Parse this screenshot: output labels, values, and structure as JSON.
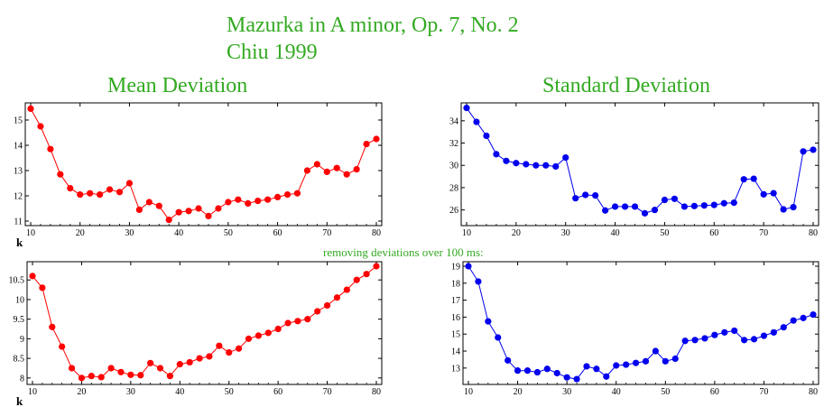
{
  "title_line1": "Mazurka in A minor, Op. 7, No. 2",
  "title_line2": "Chiu 1999",
  "heading_mean": "Mean Deviation",
  "heading_std": "Standard Deviation",
  "note": "removing deviations over 100 ms:",
  "colors": {
    "mean": "#ff0000",
    "std": "#0000ee",
    "accent": "#33aa22"
  },
  "chart_data": [
    {
      "type": "line",
      "title": "",
      "xlabel": "k",
      "ylabel": "",
      "xlim": [
        10,
        80
      ],
      "ylim": [
        11,
        15.5
      ],
      "xticks": [
        10,
        20,
        30,
        40,
        50,
        60,
        70,
        80
      ],
      "yticks": [
        11,
        12,
        13,
        14,
        15
      ],
      "ytick_labels": [
        "11",
        "12",
        "13",
        "14",
        "15"
      ],
      "series": [
        {
          "x": [
            10,
            12,
            14,
            16,
            18,
            20,
            22,
            24,
            26,
            28,
            30,
            32,
            34,
            36,
            38,
            40,
            42,
            44,
            46,
            48,
            50,
            52,
            54,
            56,
            58,
            60,
            62,
            64,
            66,
            68,
            70,
            72,
            74,
            76,
            78,
            80
          ],
          "y": [
            15.45,
            14.75,
            13.85,
            12.85,
            12.3,
            12.05,
            12.1,
            12.05,
            12.25,
            12.15,
            12.5,
            11.45,
            11.75,
            11.6,
            11.05,
            11.35,
            11.4,
            11.5,
            11.2,
            11.5,
            11.75,
            11.85,
            11.7,
            11.8,
            11.85,
            11.95,
            12.05,
            12.1,
            13.0,
            13.25,
            12.95,
            13.1,
            12.85,
            13.05,
            14.05,
            14.25
          ]
        }
      ]
    },
    {
      "type": "line",
      "title": "",
      "xlabel": "",
      "ylabel": "",
      "xlim": [
        10,
        80
      ],
      "ylim": [
        25,
        35.2
      ],
      "xticks": [
        10,
        20,
        30,
        40,
        50,
        60,
        70,
        80
      ],
      "yticks": [
        26,
        28,
        30,
        32,
        34
      ],
      "ytick_labels": [
        "26",
        "28",
        "30",
        "32",
        "34"
      ],
      "series": [
        {
          "x": [
            10,
            12,
            14,
            16,
            18,
            20,
            22,
            24,
            26,
            28,
            30,
            32,
            34,
            36,
            38,
            40,
            42,
            44,
            46,
            48,
            50,
            52,
            54,
            56,
            58,
            60,
            62,
            64,
            66,
            68,
            70,
            72,
            74,
            76,
            78,
            80
          ],
          "y": [
            35.15,
            33.9,
            32.65,
            31.0,
            30.4,
            30.2,
            30.1,
            30.0,
            30.0,
            29.9,
            30.7,
            27.05,
            27.35,
            27.3,
            25.95,
            26.3,
            26.3,
            26.3,
            25.7,
            26.0,
            26.9,
            27.0,
            26.3,
            26.35,
            26.4,
            26.45,
            26.6,
            26.65,
            28.75,
            28.8,
            27.4,
            27.5,
            26.05,
            26.25,
            31.25,
            31.4
          ]
        }
      ]
    },
    {
      "type": "line",
      "title": "",
      "xlabel": "k",
      "ylabel": "",
      "xlim": [
        10,
        80
      ],
      "ylim": [
        7.95,
        10.85
      ],
      "xticks": [
        10,
        20,
        30,
        40,
        50,
        60,
        70,
        80
      ],
      "yticks": [
        8,
        8.5,
        9,
        9.5,
        10,
        10.5
      ],
      "ytick_labels": [
        "8",
        "8.5",
        "9",
        "9.5",
        "10",
        "10.5"
      ],
      "series": [
        {
          "x": [
            10,
            12,
            14,
            16,
            18,
            20,
            22,
            24,
            26,
            28,
            30,
            32,
            34,
            36,
            38,
            40,
            42,
            44,
            46,
            48,
            50,
            52,
            54,
            56,
            58,
            60,
            62,
            64,
            66,
            68,
            70,
            72,
            74,
            76,
            78,
            80
          ],
          "y": [
            10.6,
            10.3,
            9.3,
            8.8,
            8.25,
            8.0,
            8.05,
            8.02,
            8.25,
            8.15,
            8.08,
            8.07,
            8.38,
            8.25,
            8.05,
            8.35,
            8.4,
            8.5,
            8.55,
            8.82,
            8.65,
            8.75,
            9.0,
            9.08,
            9.15,
            9.25,
            9.4,
            9.45,
            9.5,
            9.7,
            9.85,
            10.05,
            10.25,
            10.5,
            10.65,
            10.85
          ]
        }
      ]
    },
    {
      "type": "line",
      "title": "",
      "xlabel": "",
      "ylabel": "",
      "xlim": [
        10,
        80
      ],
      "ylim": [
        12.3,
        19.0
      ],
      "xticks": [
        10,
        20,
        30,
        40,
        50,
        60,
        70,
        80
      ],
      "yticks": [
        13,
        14,
        15,
        16,
        17,
        18,
        19
      ],
      "ytick_labels": [
        "13",
        "14",
        "15",
        "16",
        "17",
        "18",
        "19"
      ],
      "series": [
        {
          "x": [
            10,
            12,
            14,
            16,
            18,
            20,
            22,
            24,
            26,
            28,
            30,
            32,
            34,
            36,
            38,
            40,
            42,
            44,
            46,
            48,
            50,
            52,
            54,
            56,
            58,
            60,
            62,
            64,
            66,
            68,
            70,
            72,
            74,
            76,
            78,
            80
          ],
          "y": [
            19.0,
            18.1,
            15.75,
            14.8,
            13.45,
            12.85,
            12.85,
            12.75,
            12.95,
            12.7,
            12.45,
            12.35,
            13.1,
            12.95,
            12.5,
            13.15,
            13.2,
            13.3,
            13.4,
            14.0,
            13.4,
            13.55,
            14.6,
            14.65,
            14.75,
            14.95,
            15.1,
            15.2,
            14.65,
            14.7,
            14.9,
            15.1,
            15.4,
            15.8,
            15.95,
            16.15
          ]
        }
      ]
    }
  ]
}
